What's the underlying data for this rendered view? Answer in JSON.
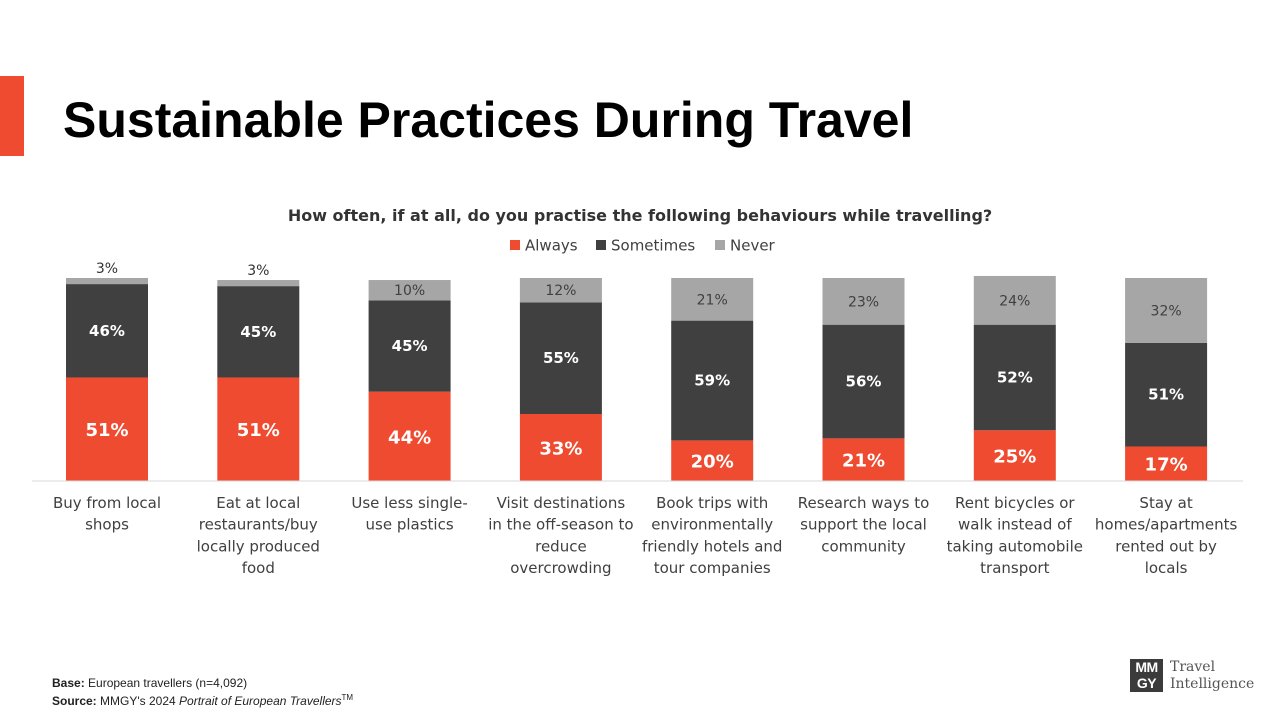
{
  "page": {
    "title": "Sustainable Practices During Travel"
  },
  "chart_data": {
    "type": "bar",
    "stacked": true,
    "percent_stacked": true,
    "title": "How often, if at all, do you practise the following behaviours while travelling?",
    "legend_position": "top",
    "grid": false,
    "categories": [
      "Buy from local shops",
      "Eat at local restaurants/buy locally produced food",
      "Use less single-use plastics",
      "Visit destinations in the off-season to reduce overcrowding",
      "Book trips with environmentally friendly hotels and tour companies",
      "Research ways to support the local community",
      "Rent bicycles or walk instead of taking automobile transport",
      "Stay at homes/apartments rented out by locals"
    ],
    "category_label_lines": [
      [
        "Buy from local",
        "shops"
      ],
      [
        "Eat at local",
        "restaurants/buy",
        "locally produced",
        "food"
      ],
      [
        "Use less single-",
        "use plastics"
      ],
      [
        "Visit destinations",
        "in the off-season to",
        "reduce",
        "overcrowding"
      ],
      [
        "Book trips with",
        "environmentally",
        "friendly hotels and",
        "tour companies"
      ],
      [
        "Research ways to",
        "support the local",
        "community"
      ],
      [
        "Rent bicycles or",
        "walk instead of",
        "taking automobile",
        "transport"
      ],
      [
        "Stay at",
        "homes/apartments",
        "rented out by",
        "locals"
      ]
    ],
    "series": [
      {
        "name": "Always",
        "color": "#ef4b30",
        "values": [
          51,
          51,
          44,
          33,
          20,
          21,
          25,
          17
        ]
      },
      {
        "name": "Sometimes",
        "color": "#404040",
        "values": [
          46,
          45,
          45,
          55,
          59,
          56,
          52,
          51
        ]
      },
      {
        "name": "Never",
        "color": "#a6a6a6",
        "values": [
          3,
          3,
          10,
          12,
          21,
          23,
          24,
          32
        ]
      }
    ],
    "ylim": [
      0,
      100
    ],
    "value_suffix": "%"
  },
  "footer": {
    "base_label": "Base:",
    "base_text": " European travellers (n=4,092)",
    "source_label": "Source:",
    "source_prefix": " MMGY's 2024 ",
    "source_title": "Portrait of European Travellers",
    "source_tm": "TM"
  },
  "logo": {
    "mark_line1": "MM",
    "mark_line2": "GY",
    "text_line1": "Travel",
    "text_line2": "Intelligence"
  }
}
